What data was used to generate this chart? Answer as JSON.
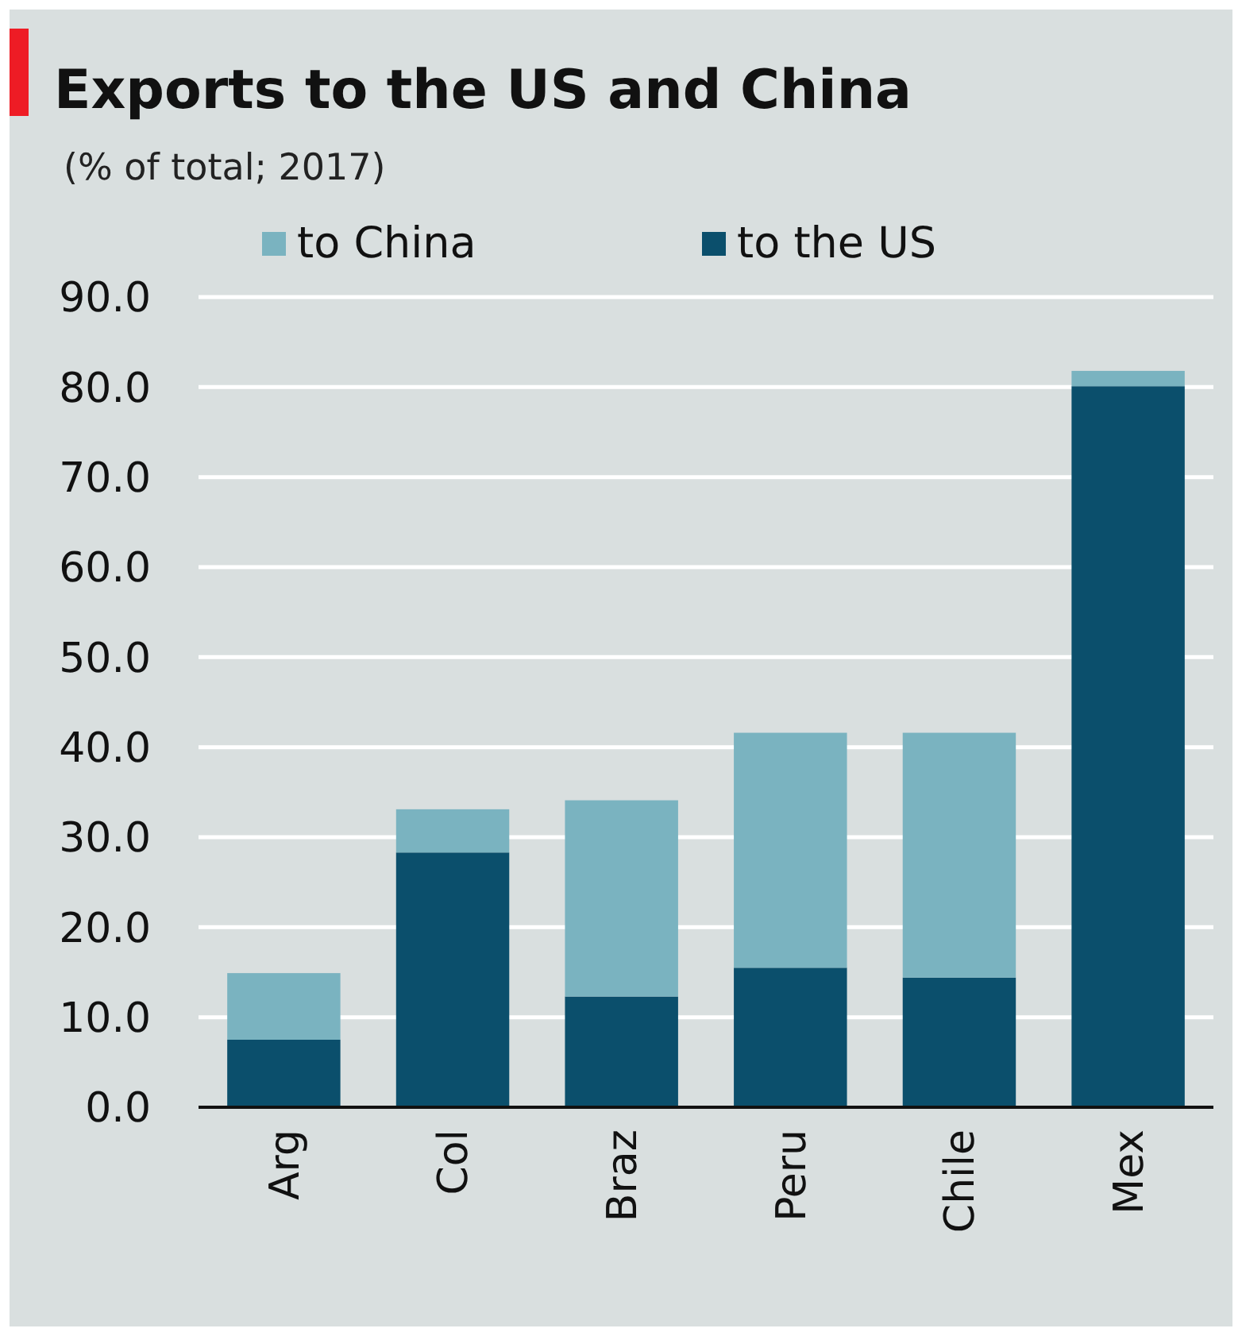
{
  "chart_data": {
    "type": "bar",
    "title": "Exports to the US and China",
    "subtitle": "(% of total; 2017)",
    "categories": [
      "Arg",
      "Col",
      "Braz",
      "Peru",
      "Chile",
      "Mex"
    ],
    "stacked": true,
    "series": [
      {
        "name": "to the US",
        "color": "#0b4f6c",
        "values": [
          7.5,
          28.3,
          12.3,
          15.5,
          14.4,
          80.1
        ]
      },
      {
        "name": "to China",
        "color": "#7ab3c0",
        "values": [
          7.4,
          4.8,
          21.8,
          26.1,
          27.2,
          1.7
        ]
      }
    ],
    "ylim": [
      0,
      90
    ],
    "yticks": [
      {
        "value": 0,
        "label": "0.0"
      },
      {
        "value": 10,
        "label": "10.0"
      },
      {
        "value": 20,
        "label": "20.0"
      },
      {
        "value": 30,
        "label": "30.0"
      },
      {
        "value": 40,
        "label": "40.0"
      },
      {
        "value": 50,
        "label": "50.0"
      },
      {
        "value": 60,
        "label": "60.0"
      },
      {
        "value": 70,
        "label": "70.0"
      },
      {
        "value": 80,
        "label": "80.0"
      },
      {
        "value": 90,
        "label": "90.0"
      }
    ],
    "grid": "y",
    "legend": "top"
  }
}
